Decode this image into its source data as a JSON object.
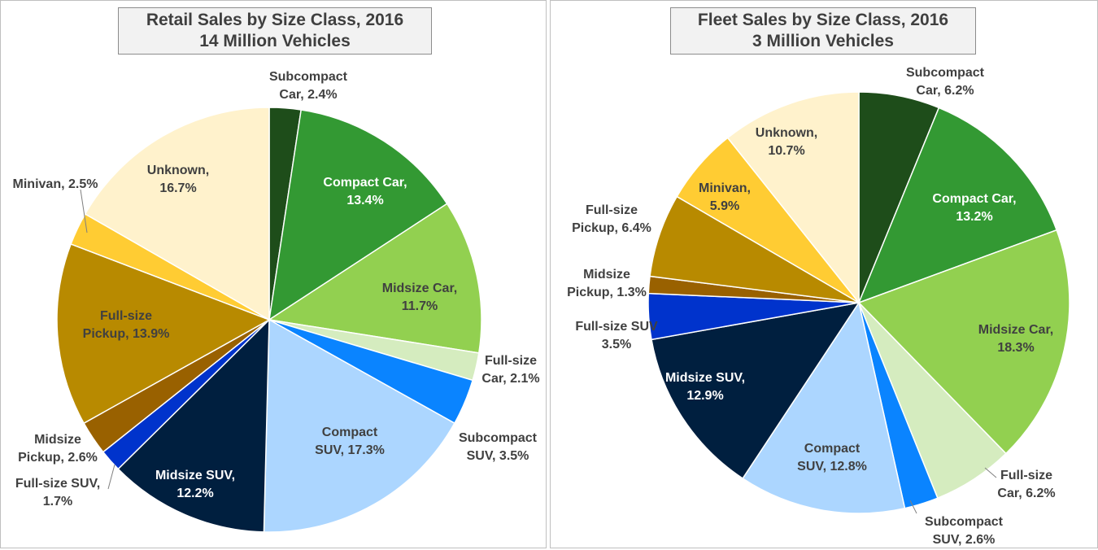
{
  "chart_data": [
    {
      "type": "pie",
      "title": [
        "Retail Sales by Size Class, 2016",
        "14 Million Vehicles"
      ],
      "slices": [
        {
          "name": "Subcompact Car",
          "value": 2.4,
          "label": [
            "Subcompact",
            "Car, 2.4%"
          ],
          "color": "#1e4d1a",
          "text_color": "#404040"
        },
        {
          "name": "Compact Car",
          "value": 13.4,
          "label": [
            "Compact Car,",
            "13.4%"
          ],
          "color": "#339933",
          "text_color": "#ffffff"
        },
        {
          "name": "Midsize Car",
          "value": 11.7,
          "label": [
            "Midsize Car,",
            "11.7%"
          ],
          "color": "#92d050",
          "text_color": "#404040"
        },
        {
          "name": "Full-size Car",
          "value": 2.1,
          "label": [
            "Full-size",
            "Car, 2.1%"
          ],
          "color": "#d5ecbf",
          "text_color": "#404040"
        },
        {
          "name": "Subcompact SUV",
          "value": 3.5,
          "label": [
            "Subcompact",
            "SUV, 3.5%"
          ],
          "color": "#0a84ff",
          "text_color": "#404040"
        },
        {
          "name": "Compact SUV",
          "value": 17.3,
          "label": [
            "Compact",
            "SUV, 17.3%"
          ],
          "color": "#acd6ff",
          "text_color": "#404040"
        },
        {
          "name": "Midsize SUV",
          "value": 12.2,
          "label": [
            "Midsize SUV,",
            "12.2%"
          ],
          "color": "#001f3f",
          "text_color": "#ffffff"
        },
        {
          "name": "Full-size SUV",
          "value": 1.7,
          "label": [
            "Full-size SUV,",
            "1.7%"
          ],
          "color": "#0033cc",
          "text_color": "#404040"
        },
        {
          "name": "Midsize Pickup",
          "value": 2.6,
          "label": [
            "Midsize",
            "Pickup, 2.6%"
          ],
          "color": "#996100",
          "text_color": "#404040"
        },
        {
          "name": "Full-size Pickup",
          "value": 13.9,
          "label": [
            "Full-size",
            "Pickup, 13.9%"
          ],
          "color": "#b88a00",
          "text_color": "#404040"
        },
        {
          "name": "Minivan",
          "value": 2.5,
          "label": [
            "Minivan, 2.5%"
          ],
          "color": "#ffcc33",
          "text_color": "#404040"
        },
        {
          "name": "Unknown",
          "value": 16.7,
          "label": [
            "Unknown,",
            "16.7%"
          ],
          "color": "#fff2cc",
          "text_color": "#404040"
        }
      ]
    },
    {
      "type": "pie",
      "title": [
        "Fleet Sales by Size Class, 2016",
        "3 Million Vehicles"
      ],
      "slices": [
        {
          "name": "Subcompact Car",
          "value": 6.2,
          "label": [
            "Subcompact",
            "Car, 6.2%"
          ],
          "color": "#1e4d1a",
          "text_color": "#404040"
        },
        {
          "name": "Compact Car",
          "value": 13.2,
          "label": [
            "Compact Car,",
            "13.2%"
          ],
          "color": "#339933",
          "text_color": "#ffffff"
        },
        {
          "name": "Midsize Car",
          "value": 18.3,
          "label": [
            "Midsize Car,",
            "18.3%"
          ],
          "color": "#92d050",
          "text_color": "#404040"
        },
        {
          "name": "Full-size Car",
          "value": 6.2,
          "label": [
            "Full-size",
            "Car, 6.2%"
          ],
          "color": "#d5ecbf",
          "text_color": "#404040"
        },
        {
          "name": "Subcompact SUV",
          "value": 2.6,
          "label": [
            "Subcompact",
            "SUV, 2.6%"
          ],
          "color": "#0a84ff",
          "text_color": "#404040"
        },
        {
          "name": "Compact SUV",
          "value": 12.8,
          "label": [
            "Compact",
            "SUV, 12.8%"
          ],
          "color": "#acd6ff",
          "text_color": "#404040"
        },
        {
          "name": "Midsize SUV",
          "value": 12.9,
          "label": [
            "Midsize SUV,",
            "12.9%"
          ],
          "color": "#001f3f",
          "text_color": "#ffffff"
        },
        {
          "name": "Full-size SUV",
          "value": 3.5,
          "label": [
            "Full-size SUV",
            "3.5%"
          ],
          "color": "#0033cc",
          "text_color": "#404040"
        },
        {
          "name": "Midsize Pickup",
          "value": 1.3,
          "label": [
            "Midsize",
            "Pickup, 1.3%"
          ],
          "color": "#996100",
          "text_color": "#404040"
        },
        {
          "name": "Full-size Pickup",
          "value": 6.4,
          "label": [
            "Full-size",
            "Pickup, 6.4%"
          ],
          "color": "#b88a00",
          "text_color": "#404040"
        },
        {
          "name": "Minivan",
          "value": 5.9,
          "label": [
            "Minivan,",
            "5.9%"
          ],
          "color": "#ffcc33",
          "text_color": "#404040"
        },
        {
          "name": "Unknown",
          "value": 10.7,
          "label": [
            "Unknown,",
            "10.7%"
          ],
          "color": "#fff2cc",
          "text_color": "#404040"
        }
      ]
    }
  ]
}
